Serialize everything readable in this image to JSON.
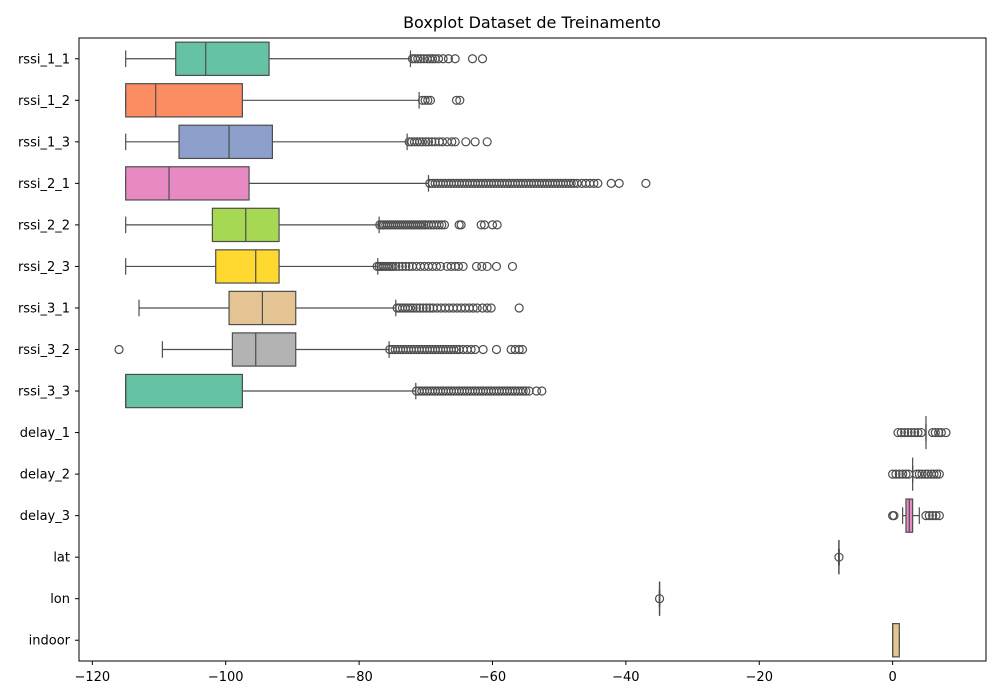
{
  "chart_data": {
    "type": "boxplot",
    "orientation": "horizontal",
    "title": "Boxplot Dataset de Treinamento",
    "xlabel": "",
    "ylabel": "",
    "xlim": [
      -122,
      14
    ],
    "xticks": [
      -120,
      -100,
      -80,
      -60,
      -40,
      -20,
      0
    ],
    "xtick_labels": [
      "−120",
      "−100",
      "−80",
      "−60",
      "−40",
      "−20",
      "0"
    ],
    "grid": false,
    "series": [
      {
        "name": "rssi_1_1",
        "color": "#66c2a5",
        "whisker_low": -115,
        "q1": -107.5,
        "median": -103,
        "q3": -93.5,
        "whisker_high": -72.3,
        "outliers": [
          -72,
          -71.6,
          -71.2,
          -70.8,
          -70.3,
          -69.8,
          -69.4,
          -69,
          -68.6,
          -68.1,
          -67.4,
          -66.6,
          -65.6,
          -63,
          -61.5
        ]
      },
      {
        "name": "rssi_1_2",
        "color": "#fc8d62",
        "whisker_low": -115,
        "q1": -115,
        "median": -110.5,
        "q3": -97.5,
        "whisker_high": -71,
        "outliers": [
          -70.5,
          -70.1,
          -69.7,
          -69.3,
          -65.4,
          -64.9
        ]
      },
      {
        "name": "rssi_1_3",
        "color": "#8da0cb",
        "whisker_low": -115,
        "q1": -107,
        "median": -99.5,
        "q3": -93,
        "whisker_high": -72.8,
        "outliers": [
          -72.5,
          -72.1,
          -71.7,
          -71.3,
          -70.9,
          -70.5,
          -70,
          -69.6,
          -69.1,
          -68.6,
          -68,
          -67.5,
          -66.8,
          -66.1,
          -65.6,
          -64,
          -62.6,
          -60.8
        ]
      },
      {
        "name": "rssi_2_1",
        "color": "#e78ac3",
        "whisker_low": -115,
        "q1": -115,
        "median": -108.5,
        "q3": -96.5,
        "whisker_high": -69.6,
        "outliers": [
          -69.4,
          -69,
          -68.6,
          -68.2,
          -67.8,
          -67.4,
          -67,
          -66.6,
          -66.2,
          -65.8,
          -65.4,
          -65,
          -64.6,
          -64.2,
          -63.8,
          -63.4,
          -63,
          -62.6,
          -62.2,
          -61.8,
          -61.4,
          -61,
          -60.6,
          -60.2,
          -59.8,
          -59.4,
          -59,
          -58.6,
          -58.2,
          -57.8,
          -57.4,
          -57,
          -56.6,
          -56.2,
          -55.8,
          -55.4,
          -55,
          -54.6,
          -54.2,
          -53.8,
          -53.4,
          -53,
          -52.6,
          -52.2,
          -51.8,
          -51.4,
          -51,
          -50.6,
          -50.2,
          -49.8,
          -49.4,
          -49,
          -48.6,
          -48.2,
          -47.8,
          -47.3,
          -46.6,
          -46,
          -45.4,
          -44.8,
          -44.2,
          -42.2,
          -41,
          -37
        ]
      },
      {
        "name": "rssi_2_2",
        "color": "#a6d854",
        "whisker_low": -115,
        "q1": -102,
        "median": -97,
        "q3": -92,
        "whisker_high": -77,
        "outliers": [
          -76.9,
          -76.6,
          -76.3,
          -76,
          -75.7,
          -75.4,
          -75.1,
          -74.8,
          -74.5,
          -74.2,
          -73.9,
          -73.6,
          -73.3,
          -73,
          -72.7,
          -72.4,
          -72.1,
          -71.8,
          -71.5,
          -71.2,
          -70.9,
          -70.6,
          -70.3,
          -70,
          -69.6,
          -69.2,
          -68.8,
          -68.4,
          -68,
          -67.6,
          -67.2,
          -65,
          -64.7,
          -61.7,
          -61.2,
          -60,
          -59.3
        ]
      },
      {
        "name": "rssi_2_3",
        "color": "#ffd92f",
        "whisker_low": -115,
        "q1": -101.5,
        "median": -95.5,
        "q3": -92,
        "whisker_high": -77.2,
        "outliers": [
          -77.3,
          -77,
          -76.7,
          -76.4,
          -76.1,
          -75.8,
          -75.5,
          -75.2,
          -74.9,
          -74.5,
          -74,
          -73.5,
          -73,
          -72.5,
          -72,
          -71.4,
          -70.8,
          -70.2,
          -69.6,
          -69,
          -68.4,
          -67.8,
          -66.8,
          -66.2,
          -65.6,
          -65.1,
          -64.4,
          -62.4,
          -61.6,
          -60.8,
          -59.4,
          -57
        ]
      },
      {
        "name": "rssi_3_1",
        "color": "#e5c494",
        "whisker_low": -113,
        "q1": -99.5,
        "median": -94.5,
        "q3": -89.5,
        "whisker_high": -74.5,
        "outliers": [
          -74.3,
          -73.9,
          -73.5,
          -73.1,
          -72.7,
          -72.3,
          -71.9,
          -71.4,
          -70.9,
          -70.4,
          -69.9,
          -69.4,
          -68.9,
          -68.3,
          -67.7,
          -67.1,
          -66.5,
          -65.9,
          -65.3,
          -64.7,
          -64.1,
          -63.5,
          -62.9,
          -62.3,
          -61.5,
          -60.8,
          -60.2,
          -56
        ]
      },
      {
        "name": "rssi_3_2",
        "color": "#b3b3b3",
        "whisker_low": -109.5,
        "q1": -99,
        "median": -95.5,
        "q3": -89.5,
        "whisker_high": -75.5,
        "outliers": [
          -116,
          -75.4,
          -75,
          -74.6,
          -74.2,
          -73.8,
          -73.4,
          -73,
          -72.6,
          -72.2,
          -71.8,
          -71.4,
          -71,
          -70.6,
          -70.2,
          -69.8,
          -69.4,
          -69,
          -68.6,
          -68.2,
          -67.8,
          -67.4,
          -67,
          -66.6,
          -66.2,
          -65.8,
          -65.4,
          -65,
          -64.4,
          -63.8,
          -63.2,
          -62.6,
          -61.4,
          -59.4,
          -57.2,
          -56.6,
          -56,
          -55.5
        ]
      },
      {
        "name": "rssi_3_3",
        "color": "#66c2a5",
        "whisker_low": -115,
        "q1": -115,
        "median": -115,
        "q3": -97.5,
        "whisker_high": -71.5,
        "outliers": [
          -71.4,
          -71,
          -70.6,
          -70.2,
          -69.8,
          -69.4,
          -69,
          -68.6,
          -68.2,
          -67.8,
          -67.4,
          -67,
          -66.6,
          -66.2,
          -65.8,
          -65.4,
          -65,
          -64.6,
          -64.2,
          -63.8,
          -63.4,
          -63,
          -62.6,
          -62.2,
          -61.8,
          -61.4,
          -61,
          -60.6,
          -60.2,
          -59.8,
          -59.4,
          -59,
          -58.6,
          -58.2,
          -57.8,
          -57.4,
          -57,
          -56.6,
          -56.2,
          -55.8,
          -55.4,
          -55,
          -54.5,
          -53.4,
          -52.6
        ]
      },
      {
        "name": "delay_1",
        "color": "#fc8d62",
        "whisker_low": 5,
        "q1": 5,
        "median": 5,
        "q3": 5,
        "whisker_high": 5,
        "outliers": [
          0.8,
          1.3,
          1.8,
          2.3,
          2.8,
          3.3,
          3.8,
          4.3,
          6,
          6.4,
          6.9,
          7.3,
          8
        ]
      },
      {
        "name": "delay_2",
        "color": "#8da0cb",
        "whisker_low": 3,
        "q1": 3,
        "median": 3,
        "q3": 3,
        "whisker_high": 3,
        "outliers": [
          0,
          0.5,
          1,
          1.5,
          2,
          2.4,
          3.6,
          4,
          4.4,
          4.9,
          5.3,
          5.8,
          6.2,
          6.6,
          7
        ]
      },
      {
        "name": "delay_3",
        "color": "#e78ac3",
        "whisker_low": 1.5,
        "q1": 2,
        "median": 2.5,
        "q3": 3,
        "whisker_high": 4,
        "outliers": [
          0,
          0.2,
          5,
          5.5,
          6,
          6.5,
          7
        ]
      },
      {
        "name": "lat",
        "color": "#a6d854",
        "whisker_low": -8.1,
        "q1": -8.06,
        "median": -8.05,
        "q3": -8.04,
        "whisker_high": -8.0,
        "outliers": [
          -8.05
        ]
      },
      {
        "name": "lon",
        "color": "#ffd92f",
        "whisker_low": -34.98,
        "q1": -34.96,
        "median": -34.95,
        "q3": -34.94,
        "whisker_high": -34.92,
        "outliers": [
          -34.95
        ]
      },
      {
        "name": "indoor",
        "color": "#e5c494",
        "whisker_low": 0,
        "q1": 0,
        "median": 0,
        "q3": 1,
        "whisker_high": 1,
        "outliers": []
      }
    ]
  }
}
